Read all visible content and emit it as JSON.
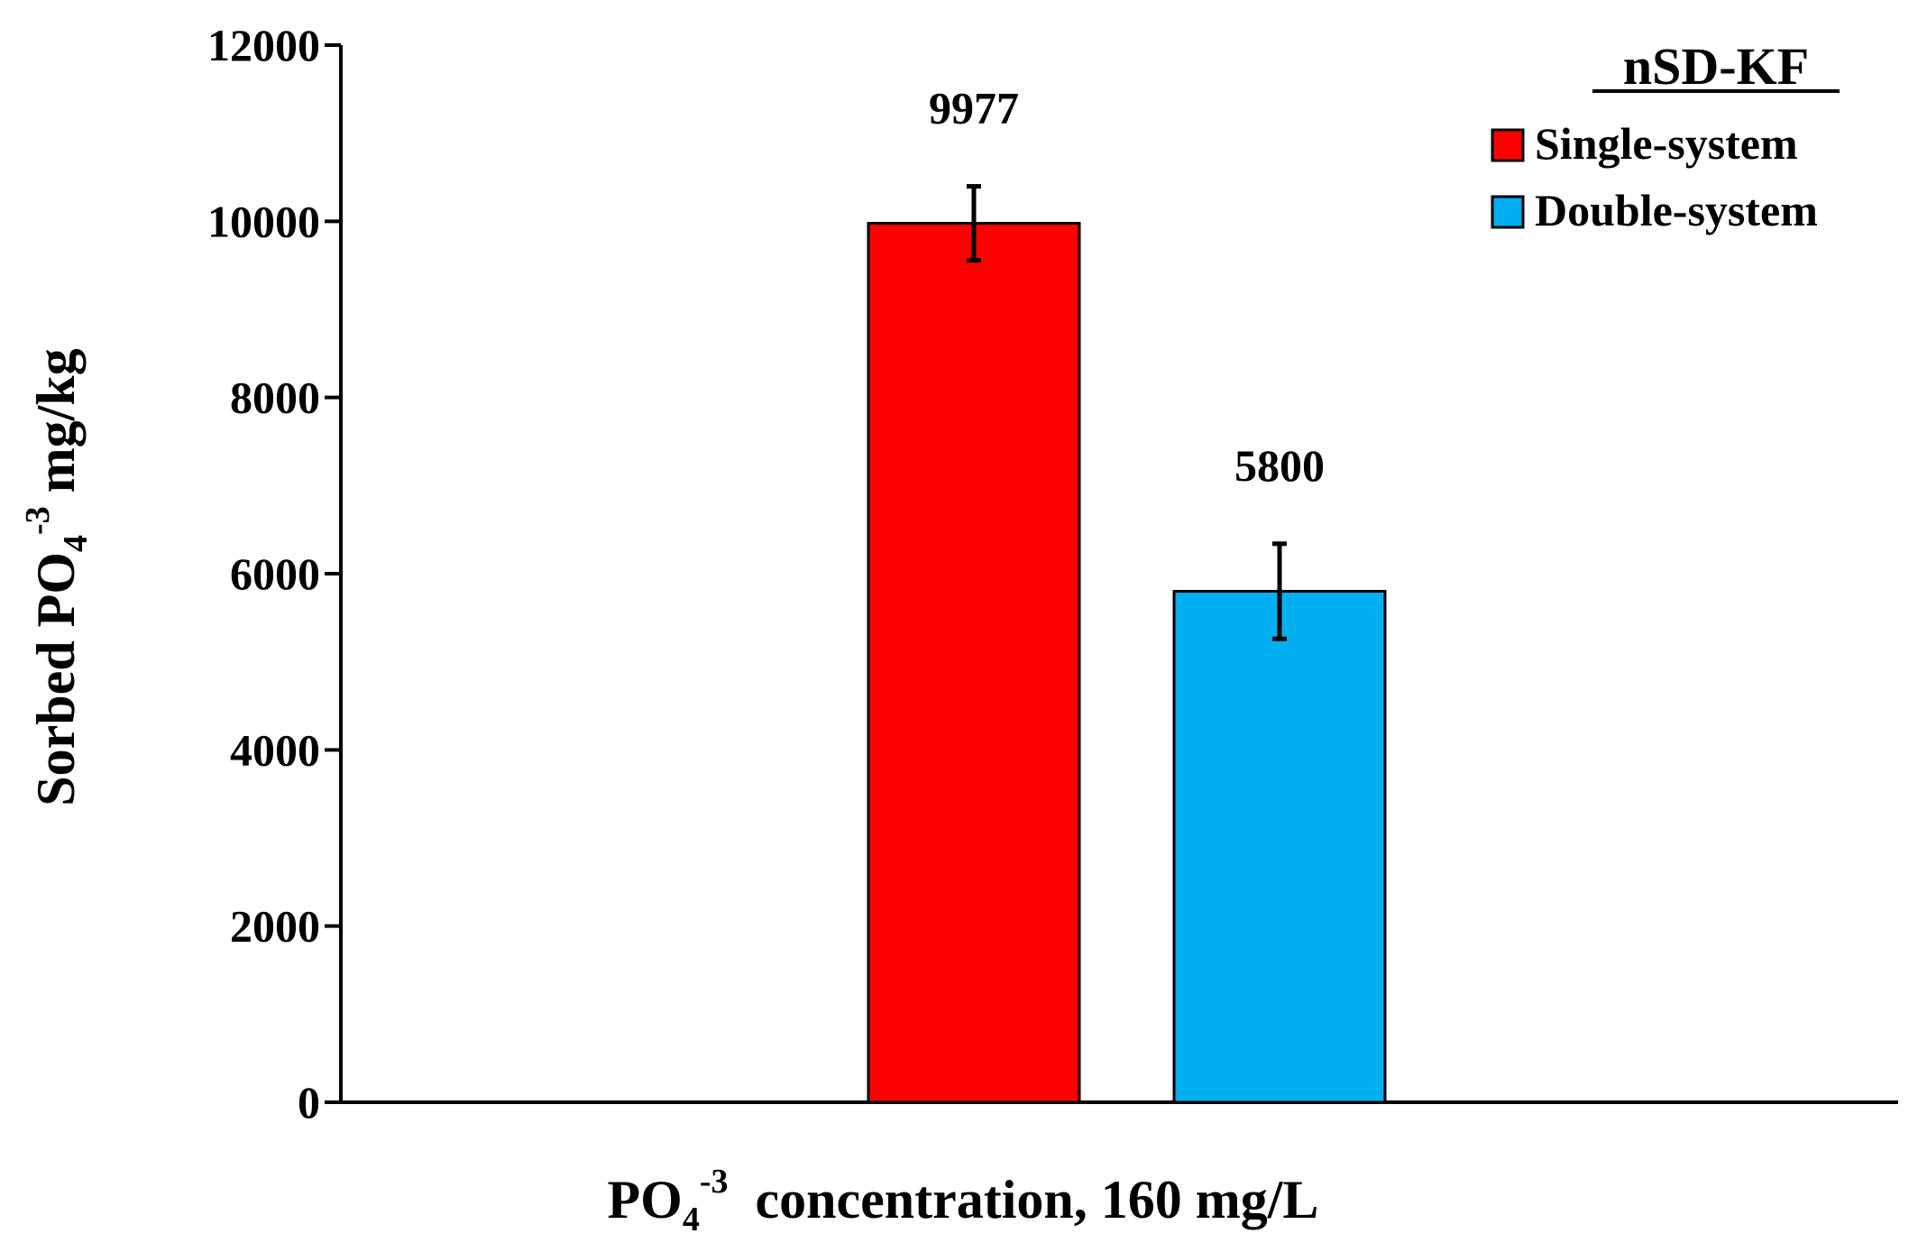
{
  "chart_data": {
    "type": "bar",
    "categories": [
      "PO4-3 concentration, 160 mg/L"
    ],
    "series": [
      {
        "name": "Single-system",
        "values": [
          9977
        ],
        "error": [
          420
        ],
        "color": "#ff0000",
        "label": "9977"
      },
      {
        "name": "Double-system",
        "values": [
          5800
        ],
        "error": [
          540
        ],
        "color": "#00b0f0",
        "label": "5800"
      }
    ],
    "ylim": [
      0,
      12000
    ],
    "yticks": [
      "0",
      "2000",
      "4000",
      "6000",
      "8000",
      "10000",
      "12000"
    ],
    "ytick_values": [
      0,
      2000,
      4000,
      6000,
      8000,
      10000,
      12000
    ],
    "ylabel": {
      "main": "Sorbed PO",
      "sub": "4",
      "sup": "-3",
      "suffix": " mg/kg"
    },
    "xlabel": {
      "main": "PO",
      "sub": "4",
      "sup": "-3",
      "suffix": "  concentration, 160 mg/L"
    },
    "legend": {
      "title": "nSD-KF",
      "position": "top-right"
    }
  }
}
